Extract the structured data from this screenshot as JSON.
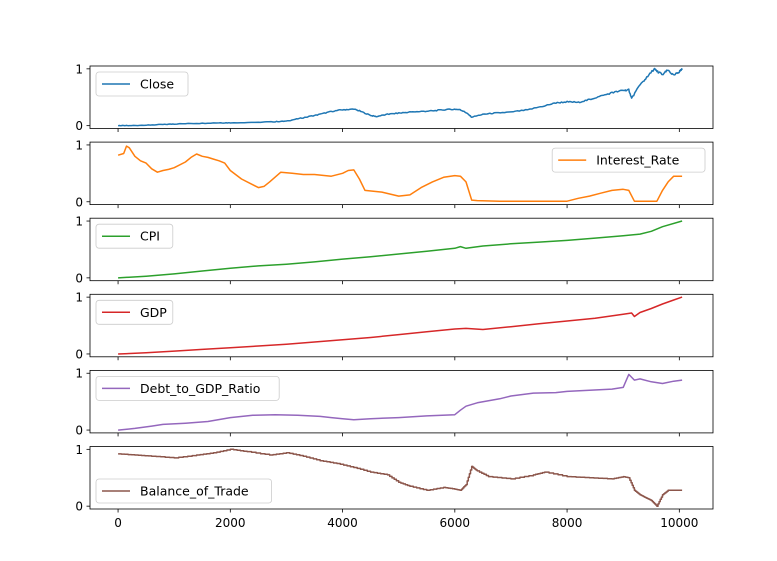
{
  "chart_data": {
    "type": "line",
    "layout": "stacked-subplots",
    "shared_x": true,
    "xlim": [
      -500,
      10600
    ],
    "xticks": [
      0,
      2000,
      4000,
      6000,
      8000,
      10000
    ],
    "xtick_labels": [
      "0",
      "2000",
      "4000",
      "6000",
      "8000",
      "10000"
    ],
    "ylim": [
      -0.05,
      1.05
    ],
    "yticks": [
      0,
      1
    ],
    "ytick_labels": [
      "0",
      "1"
    ],
    "grid": false,
    "title": "",
    "xlabel": "",
    "series": [
      {
        "name": "Close",
        "color": "#1f77b4",
        "legend": "upper-left",
        "x": [
          0,
          200,
          500,
          800,
          1000,
          1400,
          1800,
          2000,
          2500,
          2800,
          3000,
          3200,
          3400,
          3600,
          3800,
          4000,
          4200,
          4300,
          4500,
          4600,
          4800,
          5000,
          5200,
          5400,
          5600,
          5800,
          6000,
          6100,
          6200,
          6300,
          6500,
          6700,
          7000,
          7300,
          7600,
          7800,
          8000,
          8200,
          8400,
          8600,
          8800,
          9000,
          9100,
          9150,
          9300,
          9400,
          9550,
          9600,
          9700,
          9800,
          9900,
          10000,
          10050
        ],
        "values": [
          0.0,
          0.0,
          0.01,
          0.02,
          0.03,
          0.04,
          0.05,
          0.05,
          0.06,
          0.07,
          0.08,
          0.12,
          0.16,
          0.2,
          0.25,
          0.28,
          0.29,
          0.26,
          0.18,
          0.16,
          0.2,
          0.22,
          0.24,
          0.25,
          0.26,
          0.28,
          0.29,
          0.28,
          0.23,
          0.15,
          0.2,
          0.22,
          0.24,
          0.28,
          0.35,
          0.4,
          0.42,
          0.41,
          0.46,
          0.52,
          0.58,
          0.62,
          0.63,
          0.48,
          0.72,
          0.82,
          1.0,
          0.96,
          0.9,
          0.98,
          0.88,
          0.95,
          1.0
        ]
      },
      {
        "name": "Interest_Rate",
        "color": "#ff7f0e",
        "legend": "upper-right",
        "x": [
          0,
          100,
          150,
          200,
          300,
          400,
          500,
          600,
          700,
          800,
          900,
          1000,
          1200,
          1300,
          1400,
          1500,
          1600,
          1700,
          1800,
          1900,
          2000,
          2200,
          2500,
          2600,
          2700,
          2900,
          3100,
          3300,
          3500,
          3800,
          4000,
          4100,
          4200,
          4300,
          4400,
          4700,
          5000,
          5200,
          5400,
          5600,
          5800,
          6000,
          6100,
          6200,
          6300,
          6400,
          6800,
          7500,
          8000,
          8200,
          8400,
          8600,
          8800,
          9000,
          9100,
          9200,
          9600,
          9700,
          9800,
          9900,
          10050
        ],
        "values": [
          0.82,
          0.85,
          0.98,
          0.95,
          0.8,
          0.72,
          0.68,
          0.58,
          0.52,
          0.55,
          0.57,
          0.6,
          0.7,
          0.78,
          0.84,
          0.8,
          0.78,
          0.75,
          0.72,
          0.68,
          0.55,
          0.4,
          0.25,
          0.27,
          0.35,
          0.52,
          0.5,
          0.48,
          0.48,
          0.45,
          0.5,
          0.55,
          0.56,
          0.4,
          0.2,
          0.17,
          0.1,
          0.12,
          0.25,
          0.35,
          0.43,
          0.46,
          0.45,
          0.35,
          0.03,
          0.02,
          0.01,
          0.01,
          0.01,
          0.06,
          0.1,
          0.15,
          0.2,
          0.22,
          0.2,
          0.01,
          0.01,
          0.2,
          0.35,
          0.45,
          0.45
        ]
      },
      {
        "name": "CPI",
        "color": "#2ca02c",
        "legend": "upper-left",
        "x": [
          0,
          500,
          1000,
          1500,
          2000,
          2500,
          3000,
          3500,
          4000,
          4500,
          5000,
          5500,
          6000,
          6100,
          6200,
          6500,
          7000,
          7500,
          8000,
          8500,
          9000,
          9300,
          9500,
          9700,
          10050
        ],
        "values": [
          0.0,
          0.03,
          0.07,
          0.12,
          0.17,
          0.21,
          0.24,
          0.28,
          0.33,
          0.37,
          0.42,
          0.47,
          0.52,
          0.55,
          0.52,
          0.56,
          0.6,
          0.63,
          0.66,
          0.7,
          0.74,
          0.77,
          0.82,
          0.9,
          1.0
        ]
      },
      {
        "name": "GDP",
        "color": "#d62728",
        "legend": "upper-left",
        "x": [
          0,
          500,
          1000,
          1500,
          2000,
          2500,
          3000,
          3500,
          4000,
          4500,
          5000,
          5500,
          6000,
          6200,
          6500,
          7000,
          7500,
          8000,
          8500,
          9000,
          9150,
          9200,
          9300,
          9500,
          9700,
          9900,
          10050
        ],
        "values": [
          0.0,
          0.02,
          0.05,
          0.08,
          0.11,
          0.14,
          0.17,
          0.21,
          0.25,
          0.29,
          0.34,
          0.39,
          0.44,
          0.45,
          0.43,
          0.48,
          0.53,
          0.58,
          0.63,
          0.7,
          0.72,
          0.66,
          0.73,
          0.8,
          0.88,
          0.95,
          1.0
        ]
      },
      {
        "name": "Debt_to_GDP_Ratio",
        "color": "#9467bd",
        "legend": "upper-left",
        "x": [
          0,
          300,
          600,
          800,
          1200,
          1600,
          2000,
          2400,
          2800,
          3200,
          3600,
          3800,
          4000,
          4200,
          4500,
          5000,
          5500,
          6000,
          6100,
          6200,
          6400,
          6800,
          7000,
          7400,
          7800,
          8000,
          8400,
          8800,
          9000,
          9100,
          9200,
          9300,
          9500,
          9700,
          9900,
          10050
        ],
        "values": [
          0.0,
          0.03,
          0.07,
          0.1,
          0.12,
          0.15,
          0.22,
          0.26,
          0.27,
          0.26,
          0.24,
          0.22,
          0.2,
          0.18,
          0.2,
          0.22,
          0.25,
          0.27,
          0.35,
          0.42,
          0.48,
          0.55,
          0.6,
          0.65,
          0.66,
          0.68,
          0.7,
          0.72,
          0.75,
          0.98,
          0.88,
          0.9,
          0.85,
          0.82,
          0.86,
          0.88
        ]
      },
      {
        "name": "Balance_of_Trade",
        "color": "#8c564b",
        "legend": "lower-left",
        "x": [
          0,
          300,
          600,
          1000,
          1400,
          1700,
          2000,
          2300,
          2700,
          3000,
          3300,
          3600,
          3900,
          4200,
          4500,
          4800,
          5000,
          5200,
          5500,
          5800,
          6000,
          6100,
          6200,
          6300,
          6400,
          6600,
          7000,
          7400,
          7600,
          8000,
          8400,
          8800,
          9000,
          9100,
          9200,
          9300,
          9400,
          9500,
          9600,
          9700,
          9800,
          9900,
          10050
        ],
        "values": [
          0.92,
          0.9,
          0.88,
          0.85,
          0.9,
          0.94,
          1.0,
          0.96,
          0.9,
          0.94,
          0.88,
          0.8,
          0.75,
          0.68,
          0.6,
          0.55,
          0.42,
          0.35,
          0.28,
          0.33,
          0.3,
          0.28,
          0.38,
          0.7,
          0.62,
          0.52,
          0.48,
          0.55,
          0.6,
          0.52,
          0.5,
          0.48,
          0.52,
          0.5,
          0.28,
          0.2,
          0.15,
          0.1,
          0.0,
          0.2,
          0.28,
          0.28,
          0.28
        ]
      }
    ]
  }
}
